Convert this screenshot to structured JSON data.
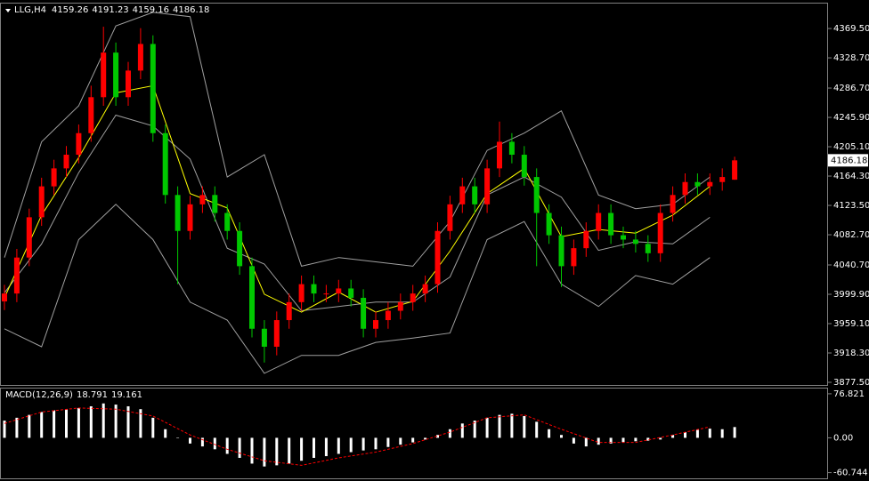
{
  "chart_data": [
    {
      "type": "candlestick",
      "title": "LLG,H4",
      "open": [
        3990,
        4001,
        4051,
        4107,
        4150,
        4175,
        4194,
        4224,
        4274,
        4336,
        4274,
        4311,
        4348,
        4224,
        4138,
        4088,
        4125,
        4138,
        4113,
        4088,
        4039,
        3952,
        3927,
        3964,
        3989,
        4014,
        4001,
        4001,
        4008,
        3995,
        3952,
        3964,
        3977,
        3989,
        4001,
        4014,
        4088,
        4125,
        4150,
        4125,
        4175,
        4212,
        4194,
        4163,
        4113,
        4082,
        4039,
        4064,
        4088,
        4113,
        4082,
        4076,
        4070,
        4057,
        4113,
        4138,
        4156,
        4150,
        4156,
        4159.26
      ],
      "high": [
        4013,
        4063,
        4119,
        4162,
        4187,
        4206,
        4236,
        4290,
        4372,
        4350,
        4323,
        4370,
        4360,
        4236,
        4150,
        4137,
        4150,
        4150,
        4125,
        4100,
        4051,
        3964,
        3976,
        4001,
        4026,
        4026,
        4013,
        4020,
        4020,
        4007,
        3976,
        3989,
        4001,
        4013,
        4026,
        4100,
        4137,
        4162,
        4162,
        4187,
        4240,
        4224,
        4206,
        4175,
        4125,
        4094,
        4076,
        4100,
        4125,
        4125,
        4094,
        4088,
        4082,
        4125,
        4150,
        4168,
        4168,
        4168,
        4175,
        4191.23
      ],
      "low": [
        3978,
        3989,
        4039,
        4095,
        4138,
        4163,
        4182,
        4212,
        4262,
        4262,
        4262,
        4299,
        4212,
        4126,
        4014,
        4076,
        4113,
        4101,
        4076,
        4027,
        3940,
        3905,
        3915,
        3952,
        3977,
        3989,
        3989,
        3989,
        3983,
        3940,
        3940,
        3952,
        3965,
        3977,
        3989,
        4002,
        4076,
        4113,
        4113,
        4113,
        4163,
        4182,
        4151,
        4039,
        4070,
        4010,
        4027,
        4052,
        4076,
        4070,
        4064,
        4058,
        4045,
        4045,
        4101,
        4126,
        4138,
        4138,
        4144,
        4159.16
      ],
      "close": [
        4001,
        4051,
        4107,
        4150,
        4175,
        4194,
        4224,
        4274,
        4336,
        4274,
        4311,
        4348,
        4224,
        4138,
        4088,
        4125,
        4138,
        4113,
        4088,
        4039,
        3952,
        3927,
        3964,
        3989,
        4014,
        4001,
        4001,
        4008,
        3995,
        3952,
        3964,
        3977,
        3989,
        4001,
        4014,
        4088,
        4125,
        4150,
        4125,
        4175,
        4212,
        4194,
        4163,
        4113,
        4082,
        4039,
        4064,
        4088,
        4113,
        4082,
        4076,
        4070,
        4057,
        4113,
        4138,
        4156,
        4150,
        4156,
        4163,
        4186.18
      ],
      "up_color": "#ff0000",
      "down_color": "#00c800",
      "overlays": [
        {
          "color": "#a0a0a0",
          "x": [
            0,
            3,
            6,
            9,
            12,
            15,
            18,
            21,
            24,
            27,
            30,
            33,
            36,
            39,
            42,
            45,
            48,
            51,
            54,
            57
          ],
          "values": [
            4051,
            4212,
            4262,
            4373,
            4392,
            4386,
            4163,
            4194,
            4039,
            4051,
            4045,
            4039,
            4101,
            4200,
            4224,
            4255,
            4138,
            4119,
            4125,
            4163
          ]
        },
        {
          "color": "#a0a0a0",
          "x": [
            0,
            3,
            6,
            9,
            12,
            15,
            18,
            21,
            24,
            27,
            30,
            33,
            36,
            39,
            42,
            45,
            48,
            51,
            54,
            57
          ],
          "values": [
            4002,
            4070,
            4169,
            4249,
            4234,
            4188,
            4064,
            4042,
            3977,
            3983,
            3989,
            3989,
            4024,
            4138,
            4163,
            4135,
            4061,
            4073,
            4070,
            4107
          ]
        },
        {
          "color": "#a0a0a0",
          "x": [
            0,
            3,
            6,
            9,
            12,
            15,
            18,
            21,
            24,
            27,
            30,
            33,
            36,
            39,
            42,
            45,
            48,
            51,
            54,
            57
          ],
          "values": [
            3952,
            3927,
            4076,
            4125,
            4076,
            3989,
            3964,
            3890,
            3915,
            3915,
            3933,
            3939,
            3946,
            4076,
            4101,
            4014,
            3983,
            4026,
            4014,
            4051
          ]
        },
        {
          "color": "#ffff00",
          "x": [
            0,
            3,
            6,
            9,
            12,
            15,
            18,
            21,
            24,
            27,
            30,
            33,
            36,
            39,
            42,
            45,
            48,
            51,
            54,
            57
          ],
          "values": [
            3995,
            4110,
            4190,
            4280,
            4290,
            4140,
            4120,
            4000,
            3975,
            4003,
            3975,
            3990,
            4060,
            4140,
            4175,
            4080,
            4090,
            4085,
            4110,
            4150
          ]
        }
      ],
      "ylim": [
        3873.8,
        4404.2
      ],
      "yticks": [
        {
          "value": 4369.5,
          "label": "4369.50"
        },
        {
          "value": 4328.7,
          "label": "4328.70"
        },
        {
          "value": 4286.7,
          "label": "4286.70"
        },
        {
          "value": 4245.9,
          "label": "4245.90"
        },
        {
          "value": 4205.1,
          "label": "4205.10"
        },
        {
          "value": 4164.3,
          "label": "4164.30"
        },
        {
          "value": 4123.5,
          "label": "4123.50"
        },
        {
          "value": 4082.7,
          "label": "4082.70"
        },
        {
          "value": 4040.7,
          "label": "4040.70"
        },
        {
          "value": 3999.9,
          "label": "3999.90"
        },
        {
          "value": 3959.1,
          "label": "3959.10"
        },
        {
          "value": 3918.3,
          "label": "3918.30"
        },
        {
          "value": 3877.5,
          "label": "3877.50"
        }
      ]
    },
    {
      "type": "macd",
      "title": "MACD(12,26,9)",
      "histogram": {
        "color": "#ffffff",
        "values": [
          30,
          35,
          40,
          45,
          48,
          50,
          52,
          55,
          60,
          58,
          55,
          50,
          35,
          15,
          0,
          -10,
          -15,
          -20,
          -28,
          -35,
          -45,
          -50,
          -48,
          -45,
          -40,
          -35,
          -32,
          -28,
          -25,
          -22,
          -20,
          -16,
          -12,
          -8,
          -3,
          5,
          15,
          25,
          30,
          35,
          40,
          42,
          38,
          28,
          15,
          5,
          -10,
          -15,
          -12,
          -10,
          -8,
          -6,
          -5,
          -3,
          5,
          10,
          14,
          16,
          15,
          18.791
        ]
      },
      "signal": {
        "color": "#ff0000",
        "x": [
          0,
          3,
          6,
          9,
          12,
          15,
          18,
          21,
          24,
          27,
          30,
          33,
          36,
          39,
          42,
          45,
          48,
          51,
          54,
          57
        ],
        "values": [
          25,
          45,
          52,
          50,
          38,
          5,
          -20,
          -40,
          -48,
          -35,
          -25,
          -10,
          10,
          35,
          40,
          15,
          -8,
          -8,
          5,
          19.161
        ]
      },
      "ylim": [
        -70.7,
        86.0
      ],
      "yticks": [
        76.821,
        {
          "value": 0,
          "label": "0.00"
        },
        -60.744
      ]
    }
  ]
}
